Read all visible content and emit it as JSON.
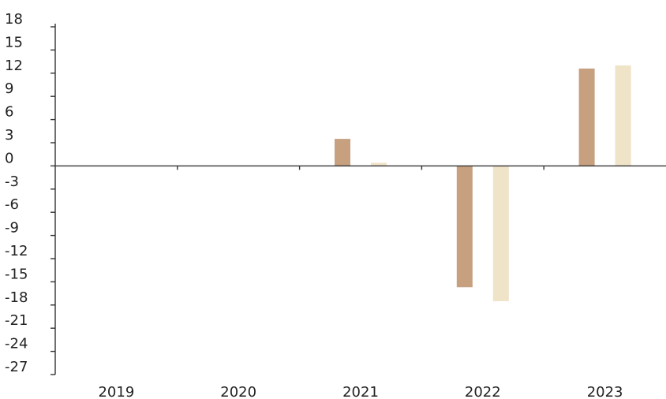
{
  "chart_data": {
    "type": "bar",
    "categories": [
      "2019",
      "2020",
      "2021",
      "2022",
      "2023"
    ],
    "series": [
      {
        "values": [
          0,
          0,
          3.5,
          -15.7,
          12.6
        ],
        "color": "#c6a07f"
      },
      {
        "values": [
          0,
          0,
          0.4,
          -17.5,
          13.0
        ],
        "color": "#efe3c8"
      }
    ],
    "y_ticks": [
      18,
      15,
      12,
      9,
      6,
      3,
      0,
      -3,
      -6,
      -9,
      -12,
      -15,
      -18,
      -21,
      -24,
      -27
    ],
    "ylim": [
      -27,
      18
    ],
    "title": "",
    "xlabel": "",
    "ylabel": "",
    "grid": false,
    "legend": "none"
  }
}
